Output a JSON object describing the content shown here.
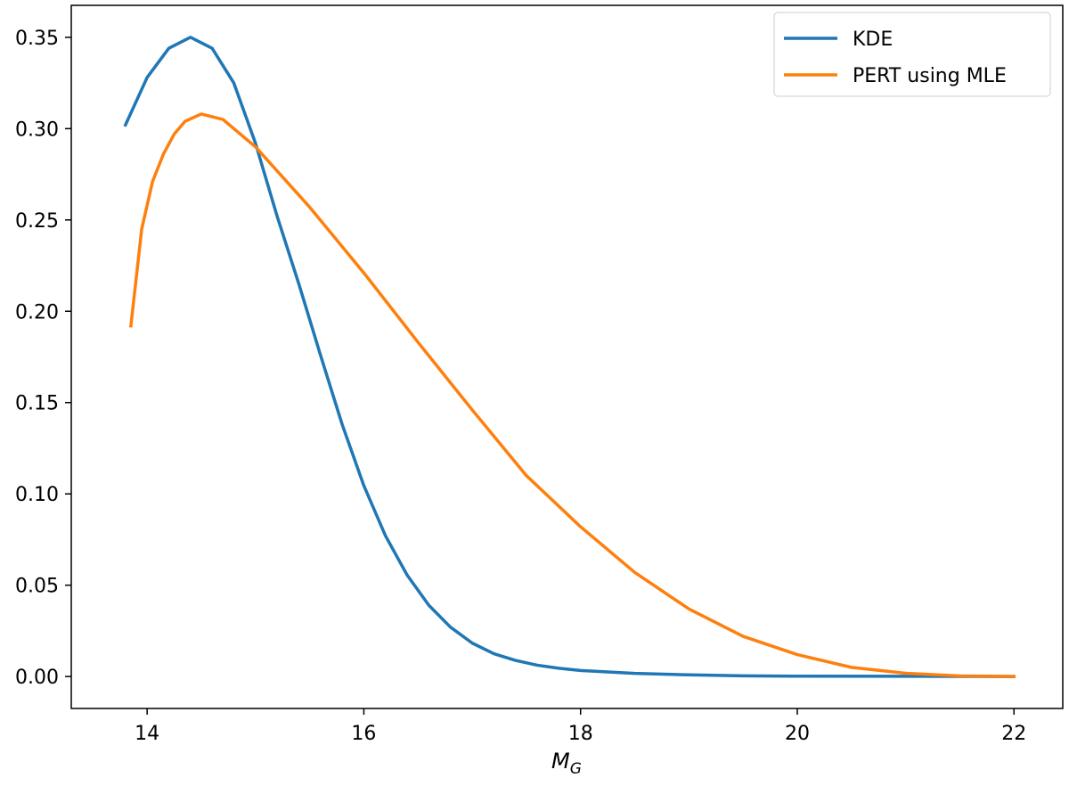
{
  "chart_data": {
    "type": "line",
    "title": "",
    "xlabel": "M",
    "xlabel_subscript": "G",
    "ylabel": "",
    "xlim": [
      13.3,
      22.45
    ],
    "ylim": [
      -0.0175,
      0.3675
    ],
    "xticks": [
      14,
      16,
      18,
      20,
      22
    ],
    "yticks": [
      0.0,
      0.05,
      0.1,
      0.15,
      0.2,
      0.25,
      0.3,
      0.35
    ],
    "grid": false,
    "legend_position": "top-right",
    "series": [
      {
        "name": "KDE",
        "color": "#1f77b4",
        "x": [
          13.8,
          14.0,
          14.2,
          14.4,
          14.6,
          14.8,
          15.0,
          15.2,
          15.4,
          15.6,
          15.8,
          16.0,
          16.2,
          16.4,
          16.6,
          16.8,
          17.0,
          17.2,
          17.4,
          17.6,
          17.8,
          18.0,
          18.5,
          19.0,
          19.5,
          20.0,
          21.0,
          22.0
        ],
        "y": [
          0.302,
          0.328,
          0.344,
          0.35,
          0.344,
          0.325,
          0.292,
          0.252,
          0.215,
          0.176,
          0.138,
          0.1045,
          0.077,
          0.0555,
          0.039,
          0.027,
          0.0183,
          0.0125,
          0.0088,
          0.0062,
          0.0045,
          0.0033,
          0.0017,
          0.0009,
          0.0004,
          0.0002,
          0.0001,
          0.0
        ]
      },
      {
        "name": "PERT using MLE",
        "color": "#ff7f0e",
        "x": [
          13.85,
          13.95,
          14.05,
          14.15,
          14.25,
          14.35,
          14.5,
          14.7,
          15.0,
          15.5,
          16.0,
          16.5,
          17.0,
          17.5,
          18.0,
          18.5,
          19.0,
          19.5,
          20.0,
          20.5,
          21.0,
          21.5,
          22.0
        ],
        "y": [
          0.192,
          0.245,
          0.271,
          0.286,
          0.297,
          0.304,
          0.308,
          0.305,
          0.29,
          0.257,
          0.221,
          0.183,
          0.146,
          0.11,
          0.082,
          0.057,
          0.037,
          0.022,
          0.012,
          0.005,
          0.0018,
          0.0003,
          0.0
        ]
      }
    ]
  }
}
